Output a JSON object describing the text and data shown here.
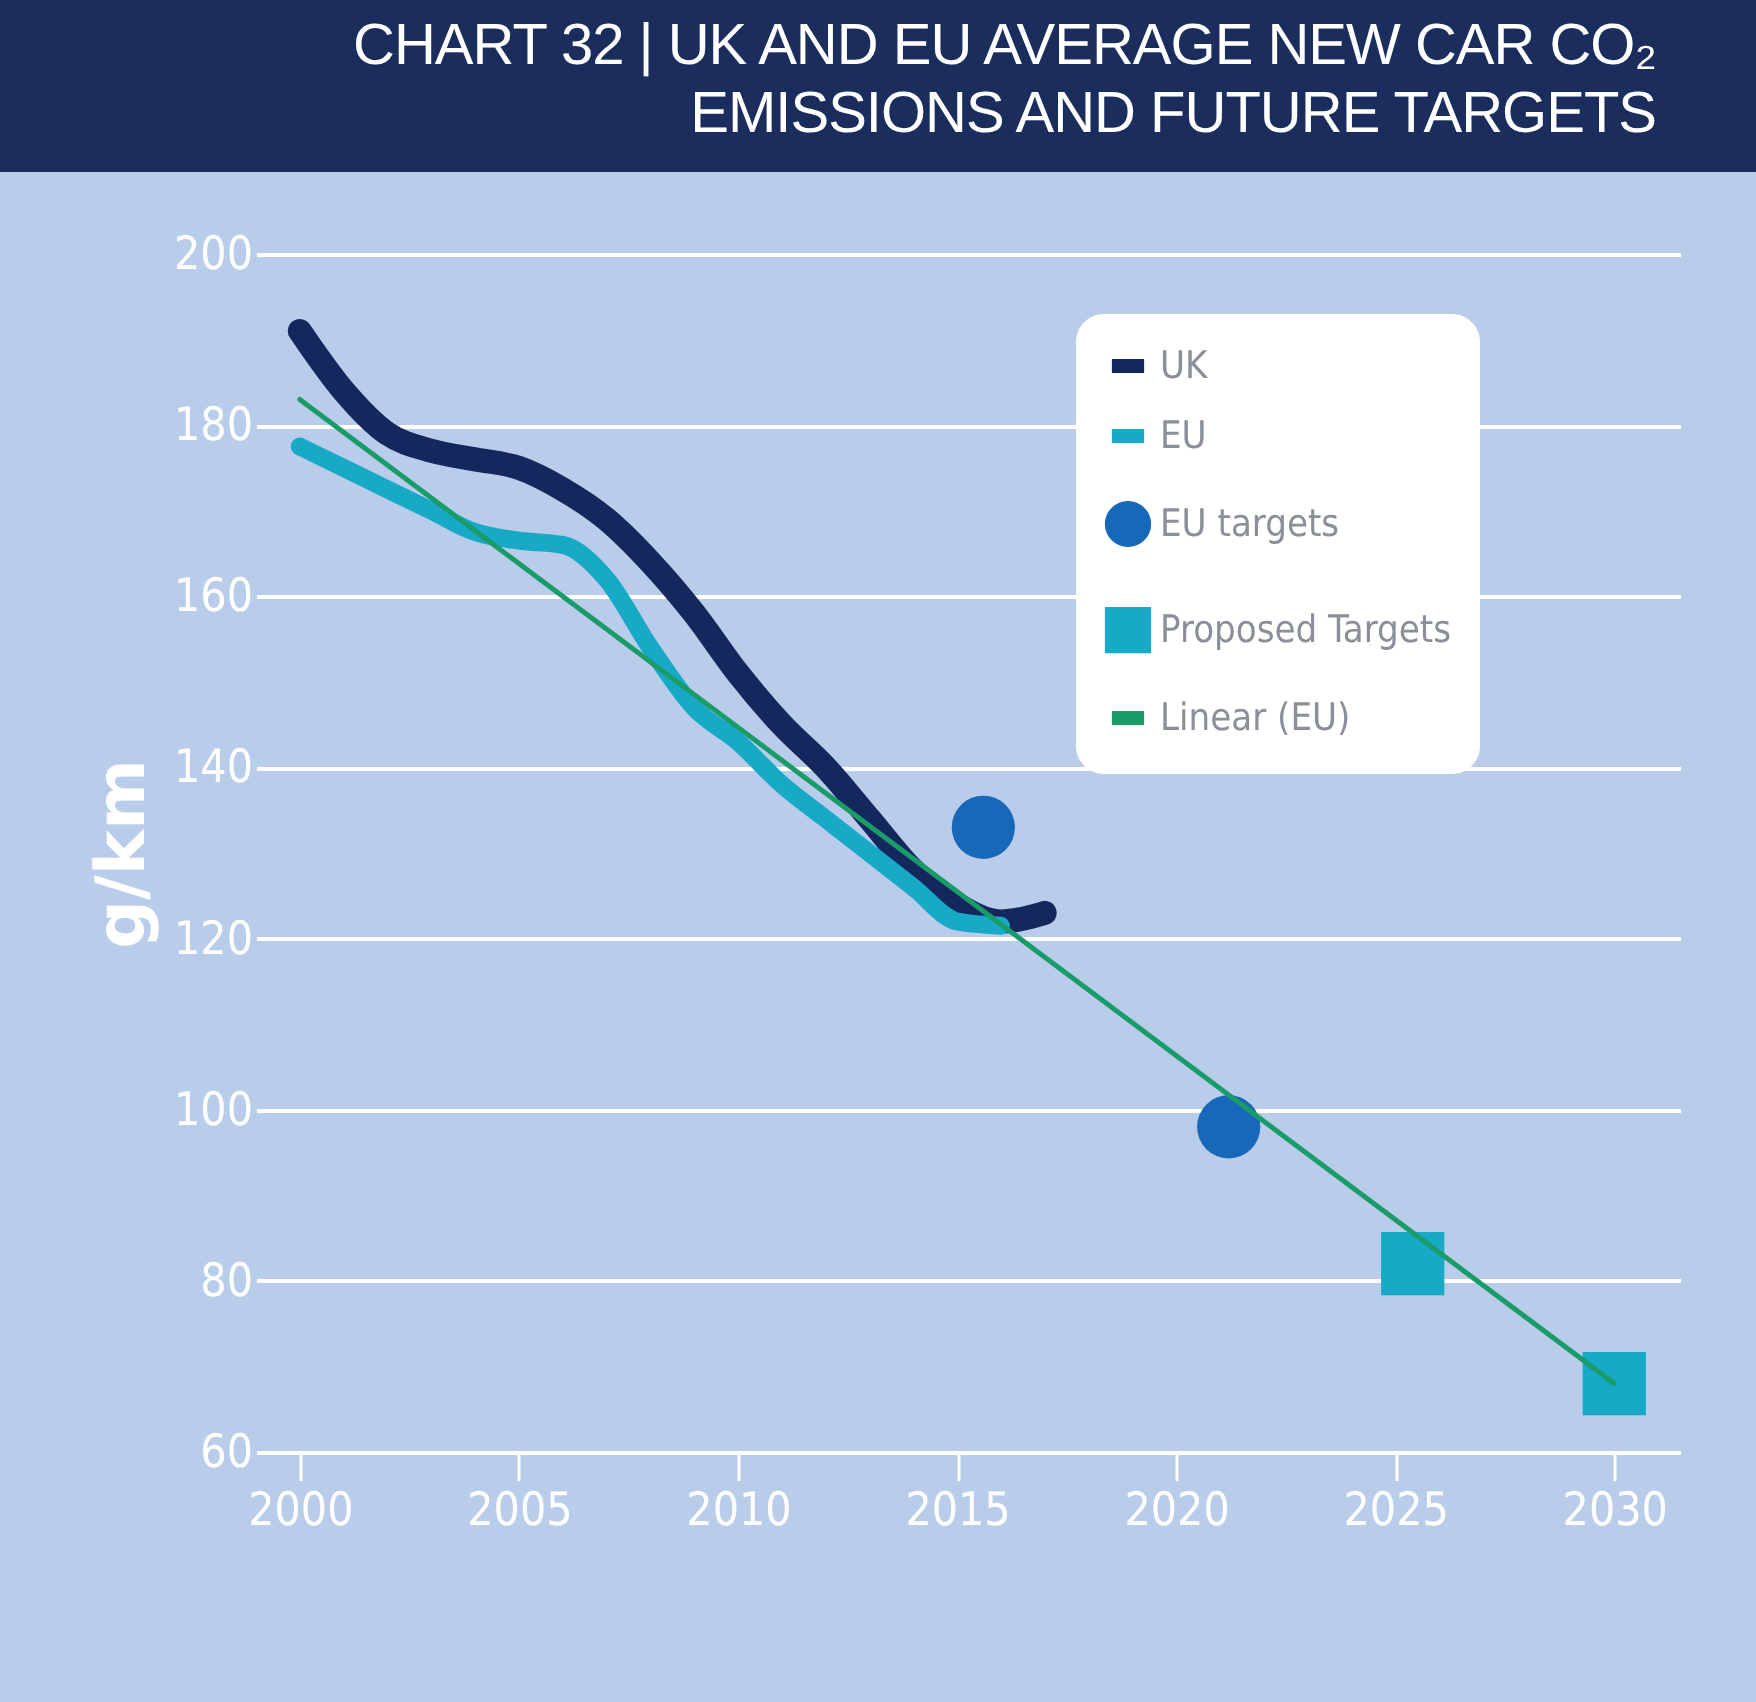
{
  "chart_data": {
    "type": "line",
    "title": "CHART 32 | UK AND EU AVERAGE NEW CAR CO₂ EMISSIONS AND FUTURE TARGETS",
    "ylabel": "g/km",
    "xlim": [
      1999,
      2031.5
    ],
    "xticks": [
      2000,
      2005,
      2010,
      2015,
      2020,
      2025,
      2030
    ],
    "ylim": [
      60,
      200
    ],
    "yticks": [
      60,
      80,
      100,
      120,
      140,
      160,
      180,
      200
    ],
    "grid": "y",
    "legend": "top right",
    "series": [
      {
        "name": "UK",
        "color": "#14285e",
        "x": [
          2000,
          2001,
          2002,
          2003,
          2004,
          2005,
          2006,
          2007,
          2008,
          2009,
          2010,
          2011,
          2012,
          2013,
          2014,
          2015,
          2016,
          2017
        ],
        "values": [
          191,
          184,
          179,
          177,
          176,
          175,
          172.5,
          169,
          164,
          158,
          151,
          145,
          140,
          134,
          128,
          124,
          122,
          123
        ]
      },
      {
        "name": "EU",
        "color": "#17a9c6",
        "x": [
          2000,
          2001,
          2002,
          2003,
          2004,
          2005,
          2006,
          2007,
          2008,
          2009,
          2010,
          2011,
          2012,
          2013,
          2014,
          2015,
          2016
        ],
        "values": [
          177.5,
          175,
          172.5,
          170,
          167.5,
          166.5,
          166,
          162,
          154,
          147,
          143,
          138,
          134,
          130,
          126,
          122,
          121.5
        ]
      },
      {
        "name": "EU targets",
        "type": "scatter",
        "marker": "circle",
        "color": "#1768b8",
        "x": [
          2015.6,
          2021.2
        ],
        "values": [
          133,
          98
        ]
      },
      {
        "name": "Proposed Targets",
        "type": "scatter",
        "marker": "square",
        "color": "#17a9c6",
        "x": [
          2025.4,
          2030
        ],
        "values": [
          82,
          68
        ]
      },
      {
        "name": "Linear (EU)",
        "color": "#1a9c6a",
        "x": [
          2000,
          2030
        ],
        "values": [
          183,
          68
        ]
      }
    ]
  }
}
